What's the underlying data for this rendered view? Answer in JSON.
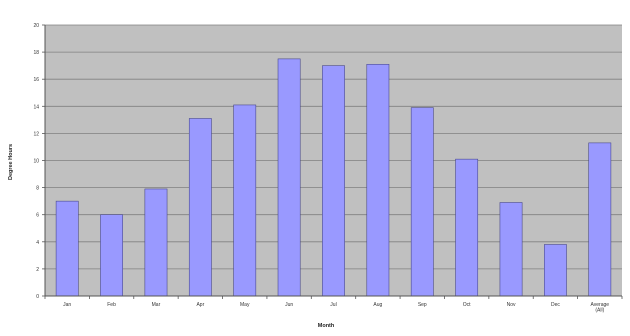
{
  "chart_data": {
    "type": "bar",
    "title": "",
    "xlabel": "Month",
    "ylabel": "Degree Hours",
    "categories": [
      "Jan",
      "Feb",
      "Mar",
      "Apr",
      "May",
      "Jun",
      "Jul",
      "Aug",
      "Sep",
      "Oct",
      "Nov",
      "Dec",
      "Average (All)"
    ],
    "values": [
      7.0,
      6.0,
      7.9,
      13.1,
      14.1,
      17.5,
      17.0,
      17.1,
      13.9,
      10.1,
      6.9,
      3.8,
      11.3
    ],
    "ylim": [
      0,
      20
    ],
    "yticks": [
      0,
      2,
      4,
      6,
      8,
      10,
      12,
      14,
      16,
      18,
      20
    ],
    "grid": true,
    "legend": "none",
    "colors": {
      "bar_fill": "#9999ff",
      "bar_stroke": "#4a4a8c",
      "plot_background": "#c0c0c0",
      "gridline": "#808080",
      "axis": "#555555"
    }
  }
}
